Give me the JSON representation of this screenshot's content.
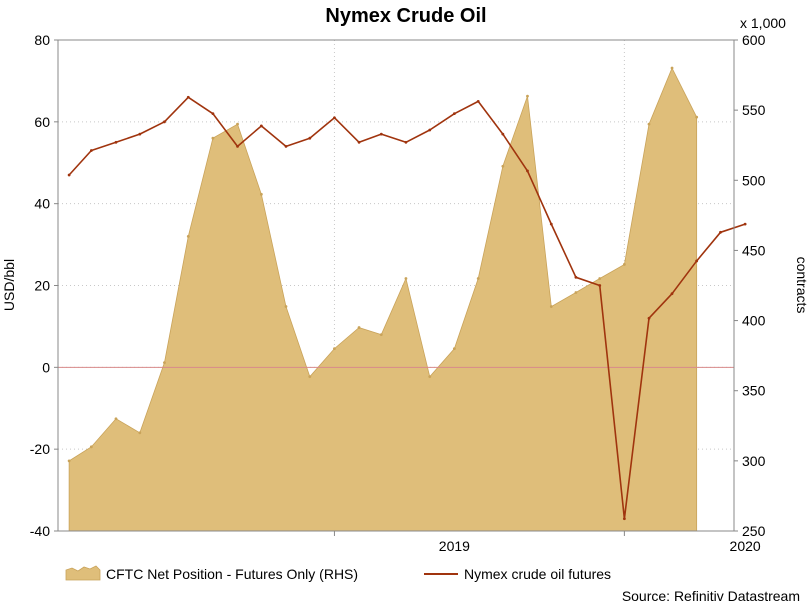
{
  "chart_data": {
    "type": "area",
    "title": "Nymex Crude Oil",
    "ylabel_left": "USD/bbl",
    "ylabel_right": "contracts",
    "right_axis_multiplier": "x 1,000",
    "source": "Source: Refinitiv Datastream",
    "x_ticks": [
      "2019",
      "2020"
    ],
    "ylim_left": [
      -40,
      80
    ],
    "yticks_left": [
      -40,
      -20,
      0,
      20,
      40,
      60,
      80
    ],
    "ylim_right": [
      250,
      600
    ],
    "yticks_right": [
      250,
      300,
      350,
      400,
      450,
      500,
      550,
      600
    ],
    "grid": true,
    "legend_position": "bottom",
    "colors": {
      "area_fill": "#DFBE7A",
      "area_edge": "#C9A35A",
      "line": "#A0340E",
      "zero_line": "#D88A8A",
      "grid": "#C8C8C8"
    },
    "series": [
      {
        "name": "CFTC Net Position - Futures Only (RHS)",
        "axis": "right",
        "kind": "area",
        "x": [
          "2018-02",
          "2018-03",
          "2018-04",
          "2018-05",
          "2018-06",
          "2018-07",
          "2018-08",
          "2018-09",
          "2018-10",
          "2018-11",
          "2018-12",
          "2019-01",
          "2019-02",
          "2019-03",
          "2019-04",
          "2019-05",
          "2019-06",
          "2019-07",
          "2019-08",
          "2019-09",
          "2019-10",
          "2019-11",
          "2019-12",
          "2020-01",
          "2020-02",
          "2020-03",
          "2020-04"
        ],
        "values": [
          300,
          310,
          330,
          320,
          370,
          460,
          530,
          540,
          490,
          410,
          360,
          380,
          395,
          390,
          430,
          360,
          380,
          430,
          510,
          560,
          410,
          420,
          430,
          440,
          540,
          580,
          545
        ]
      },
      {
        "name": "Nymex crude oil futures",
        "axis": "left",
        "kind": "line",
        "x": [
          "2018-02",
          "2018-03",
          "2018-04",
          "2018-05",
          "2018-06",
          "2018-07",
          "2018-08",
          "2018-09",
          "2018-10",
          "2018-11",
          "2018-12",
          "2019-01",
          "2019-02",
          "2019-03",
          "2019-04",
          "2019-05",
          "2019-06",
          "2019-07",
          "2019-08",
          "2019-09",
          "2019-10",
          "2019-11",
          "2019-12",
          "2020-01",
          "2020-02",
          "2020-03",
          "2020-04",
          "2020-05",
          "2020-06"
        ],
        "values": [
          47,
          53,
          55,
          57,
          60,
          66,
          62,
          54,
          59,
          54,
          56,
          61,
          55,
          57,
          55,
          58,
          62,
          65,
          57,
          48,
          35,
          22,
          20,
          -37,
          12,
          18,
          26,
          33,
          35
        ]
      }
    ]
  }
}
